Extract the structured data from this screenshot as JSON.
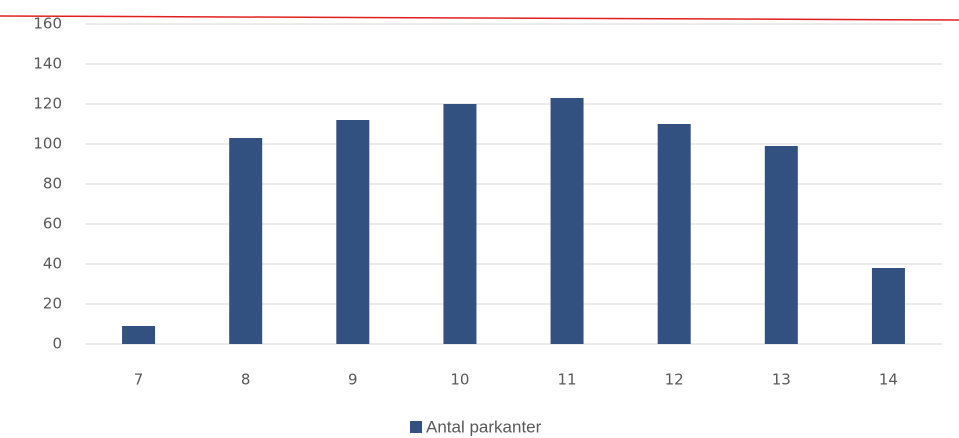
{
  "chart_data": {
    "type": "bar",
    "categories": [
      "7",
      "8",
      "9",
      "10",
      "11",
      "12",
      "13",
      "14"
    ],
    "series": [
      {
        "name": "Antal parkanter",
        "color": "#335180",
        "values": [
          9,
          103,
          112,
          120,
          123,
          110,
          99,
          38
        ]
      }
    ],
    "ylim": [
      0,
      160
    ],
    "yticks": [
      0,
      20,
      40,
      60,
      80,
      100,
      120,
      140,
      160
    ],
    "grid": true,
    "legend": "bottom"
  }
}
